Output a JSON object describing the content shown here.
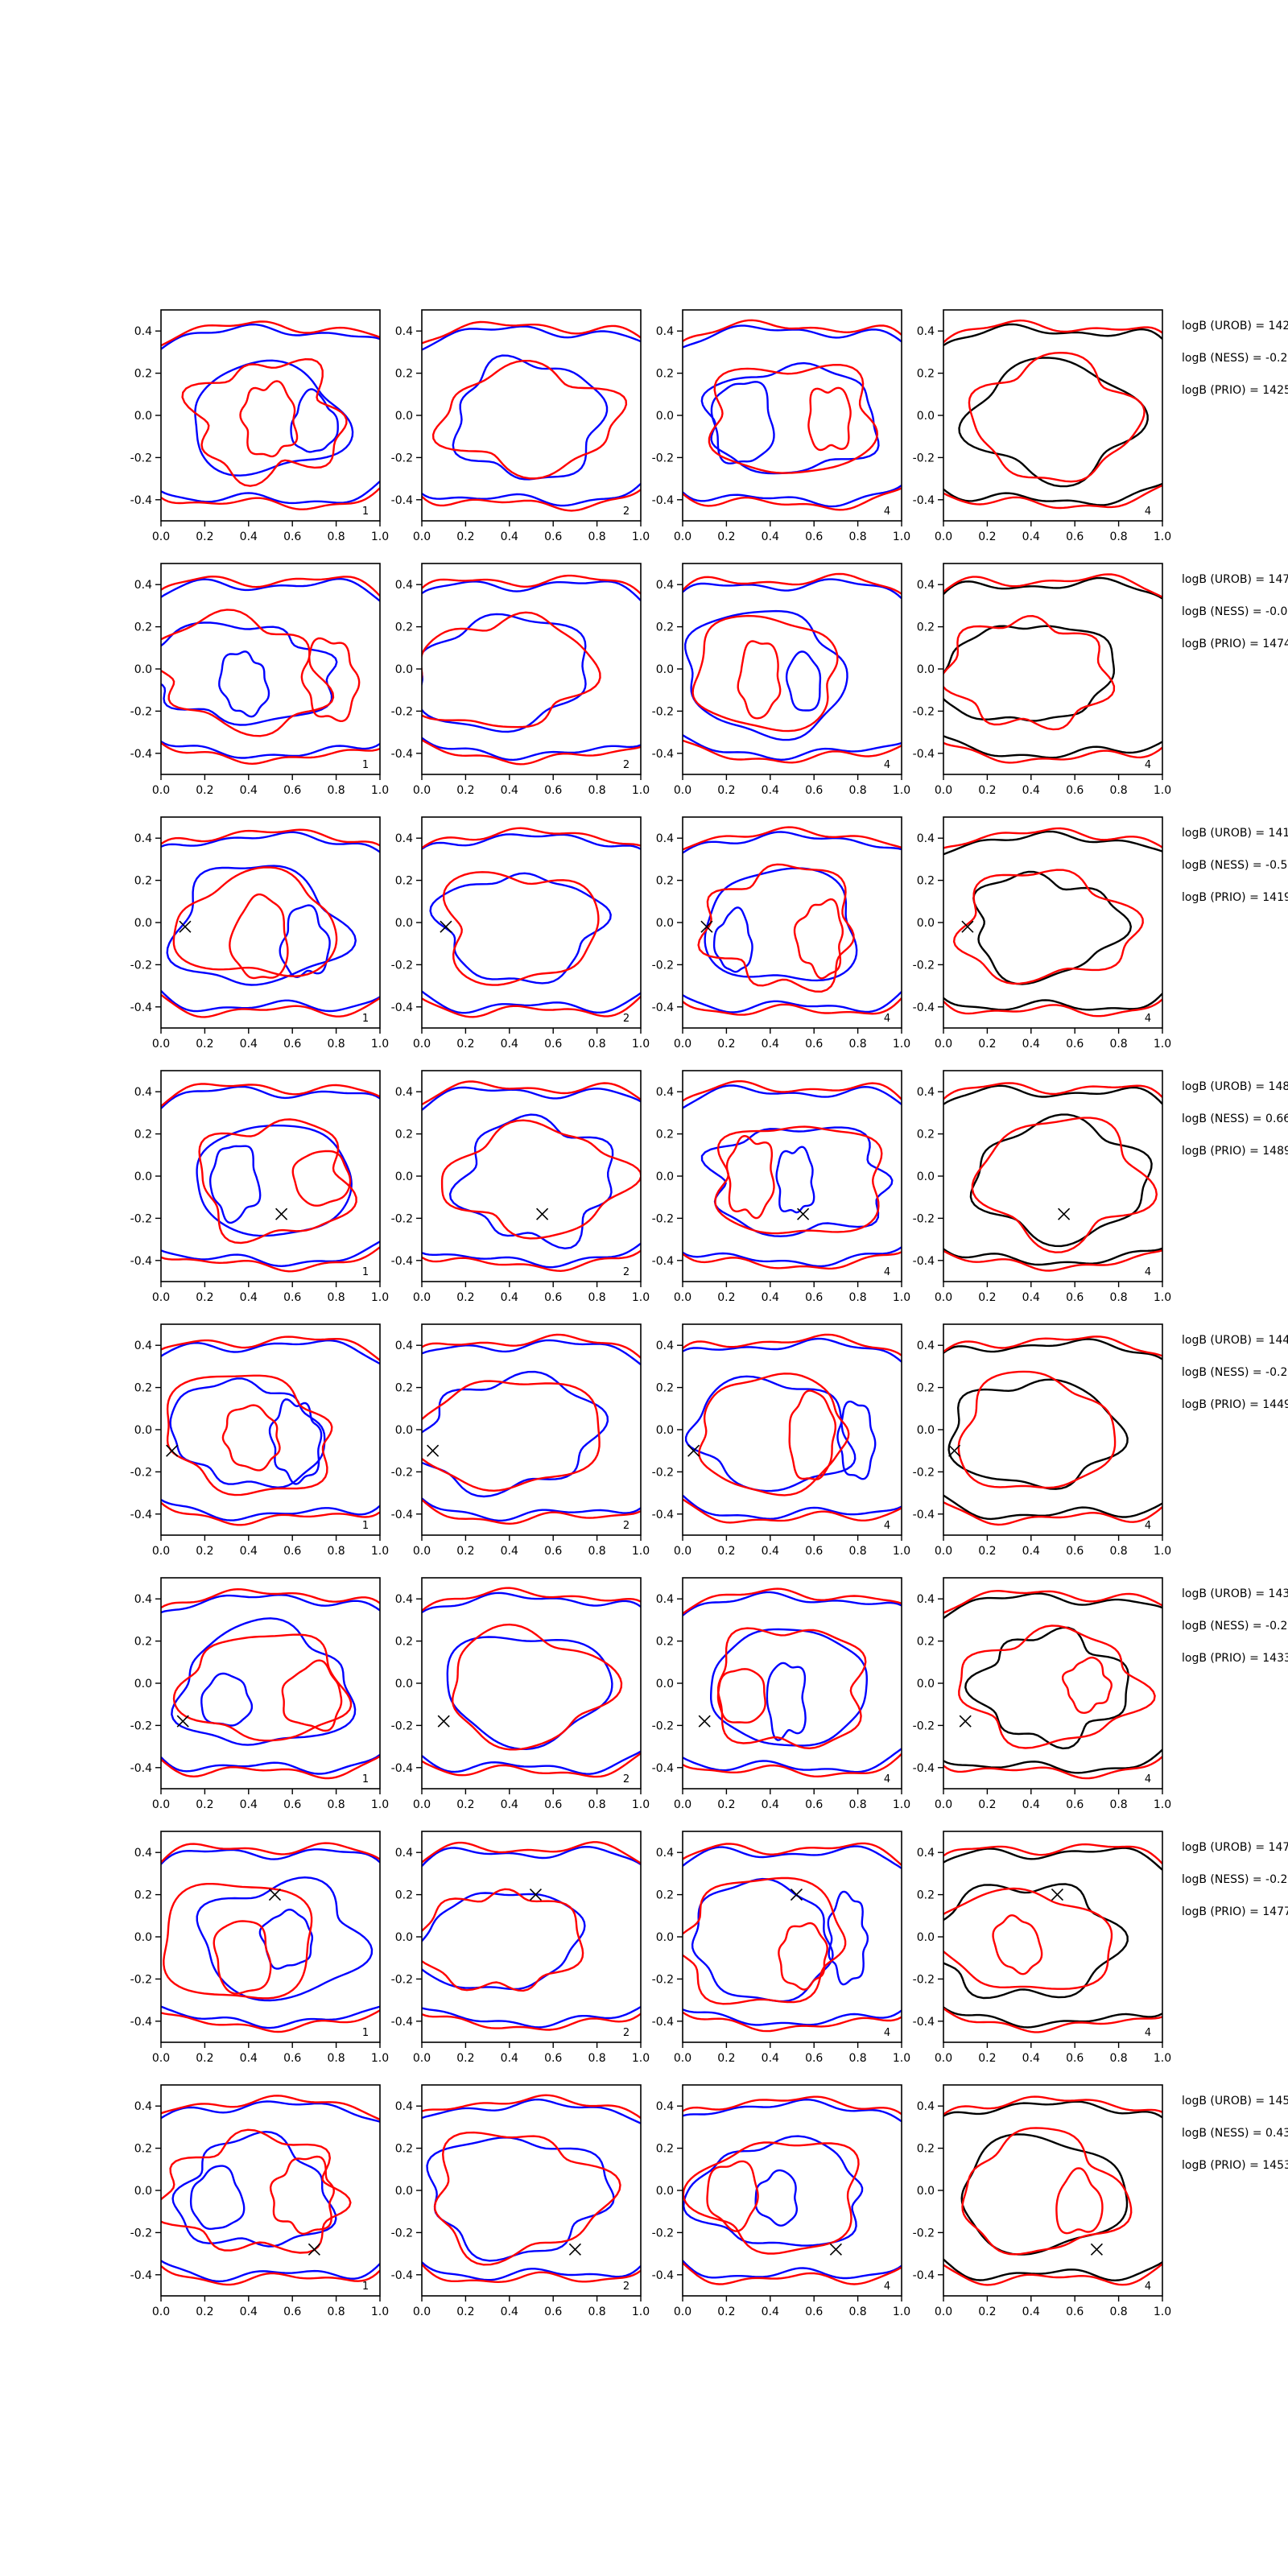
{
  "figure": {
    "axis": {
      "xlim": [
        0.0,
        1.0
      ],
      "ylim": [
        -0.5,
        0.5
      ],
      "xticks": [
        "0.0",
        "0.2",
        "0.4",
        "0.6",
        "0.8",
        "1.0"
      ],
      "yticks": [
        "0.4",
        "0.2",
        "0.0",
        "-0.2",
        "-0.4"
      ],
      "ytick_values": [
        0.4,
        0.2,
        0.0,
        -0.2,
        -0.4
      ]
    },
    "panel_labels": [
      "1",
      "2",
      "4",
      "4"
    ],
    "colors": {
      "blue": "#0000ff",
      "red": "#ff0000",
      "black": "#000000"
    }
  },
  "chart_data": [
    {
      "type": "contour",
      "row": 1,
      "annotations": [
        "logB (UROB) = 142",
        "logB (NESS) = -0.2",
        "logB (PRIO) = 1425"
      ],
      "marker": null
    },
    {
      "type": "contour",
      "row": 2,
      "annotations": [
        "logB (UROB) = 147",
        "logB (NESS) = -0.0",
        "logB (PRIO) = 1474"
      ],
      "marker": null
    },
    {
      "type": "contour",
      "row": 3,
      "annotations": [
        "logB (UROB) = 141",
        "logB (NESS) = -0.5",
        "logB (PRIO) = 1419"
      ],
      "marker": {
        "x": 0.11,
        "y": -0.02
      }
    },
    {
      "type": "contour",
      "row": 4,
      "annotations": [
        "logB (UROB) = 148",
        "logB (NESS) = 0.66",
        "logB (PRIO) = 1489"
      ],
      "marker": {
        "x": 0.55,
        "y": -0.18
      }
    },
    {
      "type": "contour",
      "row": 5,
      "annotations": [
        "logB (UROB) = 144",
        "logB (NESS) = -0.2",
        "logB (PRIO) = 1449"
      ],
      "marker": {
        "x": 0.05,
        "y": -0.1
      }
    },
    {
      "type": "contour",
      "row": 6,
      "annotations": [
        "logB (UROB) = 143",
        "logB (NESS) = -0.2",
        "logB (PRIO) = 1433"
      ],
      "marker": {
        "x": 0.1,
        "y": -0.18
      }
    },
    {
      "type": "contour",
      "row": 7,
      "annotations": [
        "logB (UROB) = 147",
        "logB (NESS) = -0.2",
        "logB (PRIO) = 1477"
      ],
      "marker": {
        "x": 0.52,
        "y": 0.2
      }
    },
    {
      "type": "contour",
      "row": 8,
      "annotations": [
        "logB (UROB) = 145",
        "logB (NESS) = 0.43",
        "logB (PRIO) = 1453"
      ],
      "marker": {
        "x": 0.7,
        "y": -0.28
      }
    }
  ]
}
